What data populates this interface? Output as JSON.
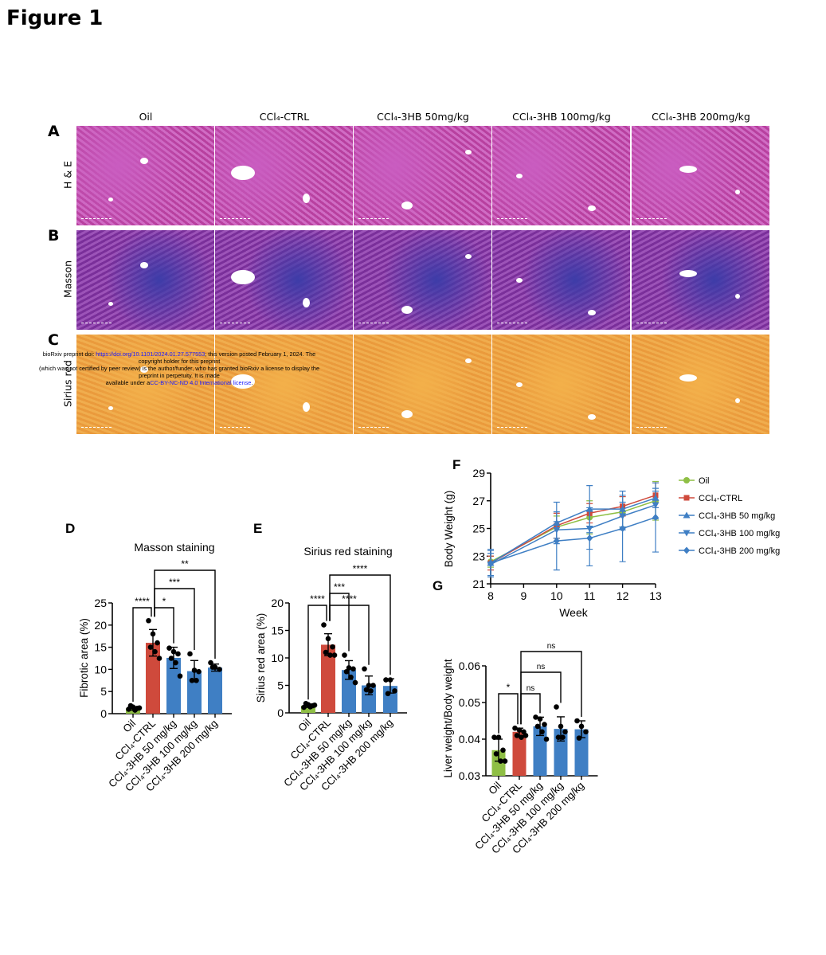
{
  "figure_title": "Figure 1",
  "histology": {
    "columns": [
      "Oil",
      "CCl₄-CTRL",
      "CCl₄-3HB 50mg/kg",
      "CCl₄-3HB 100mg/kg",
      "CCl₄-3HB 200mg/kg"
    ],
    "rows": [
      {
        "panel": "A",
        "stain": "H & E",
        "style": "he"
      },
      {
        "panel": "B",
        "stain": "Masson",
        "style": "ms"
      },
      {
        "panel": "C",
        "stain": "Sirius red",
        "style": "sr"
      }
    ]
  },
  "watermark": {
    "line1_a": "bioRxiv preprint doi: ",
    "line1_link": "https://doi.org/10.1101/2024.01.27.577553",
    "line1_b": "; this version posted February 1, 2024. The copyright holder for this preprint",
    "line2": "(which was not certified by peer review) is the author/funder, who has granted bioRxiv a license to display the preprint in perpetuity. It is made",
    "line3_a": "available under a",
    "line3_link": "CC-BY-NC-ND 4.0 International license",
    "line3_b": "."
  },
  "colors": {
    "oil": "#8fbf45",
    "ctrl": "#cf4a3c",
    "treated": "#3f7fc4"
  },
  "chart_data": [
    {
      "panel": "D",
      "type": "bar",
      "title": "Masson staining",
      "xlabel": "",
      "ylabel": "Fibrotic area (%)",
      "ylim": [
        0,
        25
      ],
      "yticks": [
        "0",
        "5",
        "10",
        "15",
        "20",
        "25"
      ],
      "grid": false,
      "categories": [
        "Oil",
        "CCl₄-CTRL",
        "CCl₄-3HB 50 mg/kg",
        "CCl₄-3HB 100 mg/kg",
        "CCl₄-3HB 200 mg/kg"
      ],
      "values": [
        1.2,
        16.0,
        12.6,
        9.6,
        10.4
      ],
      "sd": [
        0.4,
        3.0,
        2.4,
        2.4,
        0.8
      ],
      "points": [
        [
          1.0,
          1.5,
          1.2,
          1.8,
          0.8,
          1.3
        ],
        [
          21,
          18,
          16,
          15,
          14,
          12.5
        ],
        [
          14.8,
          14,
          13.5,
          12.5,
          11.5,
          8.5
        ],
        [
          13.5,
          9.8,
          9.5,
          7.5,
          7.5
        ],
        [
          11.5,
          10.5,
          10,
          10.5
        ]
      ],
      "comparisons": [
        {
          "a": 0,
          "b": 1,
          "label": "****"
        },
        {
          "a": 1,
          "b": 2,
          "label": "*"
        },
        {
          "a": 1,
          "b": 3,
          "label": "***"
        },
        {
          "a": 1,
          "b": 4,
          "label": "**"
        }
      ]
    },
    {
      "panel": "E",
      "type": "bar",
      "title": "Sirius red staining",
      "xlabel": "",
      "ylabel": "Sirius red area (%)",
      "ylim": [
        0,
        20
      ],
      "yticks": [
        "0",
        "5",
        "10",
        "15",
        "20"
      ],
      "grid": false,
      "categories": [
        "Oil",
        "CCl₄-CTRL",
        "CCl₄-3HB 50 mg/kg",
        "CCl₄-3HB 100 mg/kg",
        "CCl₄-3HB 200 mg/kg"
      ],
      "values": [
        1.3,
        12.4,
        7.8,
        5.0,
        4.9
      ],
      "sd": [
        0.3,
        2.0,
        1.7,
        1.7,
        1.3
      ],
      "points": [
        [
          1.0,
          1.5,
          1.3,
          1.7,
          1.1,
          1.4
        ],
        [
          16,
          13.5,
          12,
          11,
          10.5,
          10.5
        ],
        [
          10.5,
          8.2,
          8,
          7.5,
          6.5,
          5.5
        ],
        [
          8,
          5,
          5,
          4.2,
          4
        ],
        [
          6,
          6,
          4,
          3.5
        ]
      ],
      "comparisons": [
        {
          "a": 0,
          "b": 1,
          "label": "****"
        },
        {
          "a": 1,
          "b": 2,
          "label": "***"
        },
        {
          "a": 1,
          "b": 3,
          "label": "****"
        },
        {
          "a": 1,
          "b": 4,
          "label": "****"
        }
      ]
    },
    {
      "panel": "F",
      "type": "line",
      "title": "",
      "xlabel": "Week",
      "ylabel": "Body Weight (g)",
      "xlim": [
        8,
        13
      ],
      "ylim": [
        21,
        29
      ],
      "xticks": [
        "8",
        "9",
        "10",
        "11",
        "12",
        "13"
      ],
      "yticks": [
        "21",
        "23",
        "25",
        "27",
        "29"
      ],
      "grid": false,
      "legend": "right",
      "x": [
        8,
        10,
        11,
        12,
        13
      ],
      "series": [
        {
          "name": "Oil",
          "marker": "circle",
          "color": "#8fbf45",
          "values": [
            22.6,
            25.1,
            25.8,
            26.2,
            27.0
          ],
          "err": [
            0.4,
            0.8,
            1.2,
            1.1,
            1.4
          ]
        },
        {
          "name": "CCl₄-CTRL",
          "marker": "square",
          "color": "#cf4a3c",
          "values": [
            22.5,
            25.2,
            26.1,
            26.6,
            27.4
          ],
          "err": [
            0.5,
            0.9,
            0.7,
            0.7,
            0.9
          ]
        },
        {
          "name": "CCl₄-3HB 50 mg/kg",
          "marker": "triangle-up",
          "color": "#3f7fc4",
          "values": [
            22.5,
            25.4,
            26.4,
            26.4,
            27.2
          ],
          "err": [
            0.9,
            1.5,
            1.7,
            1.3,
            0.7
          ]
        },
        {
          "name": "CCl₄-3HB 100 mg/kg",
          "marker": "triangle-down",
          "color": "#3f7fc4",
          "values": [
            22.4,
            24.9,
            25.0,
            25.9,
            26.7
          ],
          "err": [
            0.8,
            0.6,
            1.5,
            1.0,
            1.0
          ]
        },
        {
          "name": "CCl₄-3HB 200 mg/kg",
          "marker": "diamond",
          "color": "#3f7fc4",
          "values": [
            22.5,
            24.1,
            24.3,
            25.0,
            25.8
          ],
          "err": [
            1.0,
            2.1,
            2.0,
            2.4,
            2.5
          ]
        }
      ]
    },
    {
      "panel": "G",
      "type": "bar",
      "title": "",
      "xlabel": "",
      "ylabel": "Liver weight/Body weight",
      "ylim": [
        0.03,
        0.06
      ],
      "yticks": [
        "0.03",
        "0.04",
        "0.05",
        "0.06"
      ],
      "grid": false,
      "categories": [
        "Oil",
        "CCl₄-CTRL",
        "CCl₄-3HB 50 mg/kg",
        "CCl₄-3HB 100 mg/kg",
        "CCl₄-3HB 200 mg/kg"
      ],
      "values": [
        0.037,
        0.042,
        0.0435,
        0.0428,
        0.0427
      ],
      "sd": [
        0.003,
        0.001,
        0.0025,
        0.0033,
        0.0023
      ],
      "points": [
        [
          0.0405,
          0.0405,
          0.037,
          0.036,
          0.034,
          0.034
        ],
        [
          0.043,
          0.0425,
          0.042,
          0.041,
          0.0405,
          0.041
        ],
        [
          0.046,
          0.0455,
          0.044,
          0.0435,
          0.042,
          0.04
        ],
        [
          0.0488,
          0.0435,
          0.042,
          0.0405,
          0.0405
        ],
        [
          0.045,
          0.0435,
          0.042,
          0.0403
        ]
      ],
      "comparisons": [
        {
          "a": 0,
          "b": 1,
          "label": "*"
        },
        {
          "a": 1,
          "b": 2,
          "label": "ns"
        },
        {
          "a": 1,
          "b": 3,
          "label": "ns"
        },
        {
          "a": 1,
          "b": 4,
          "label": "ns"
        }
      ]
    }
  ]
}
